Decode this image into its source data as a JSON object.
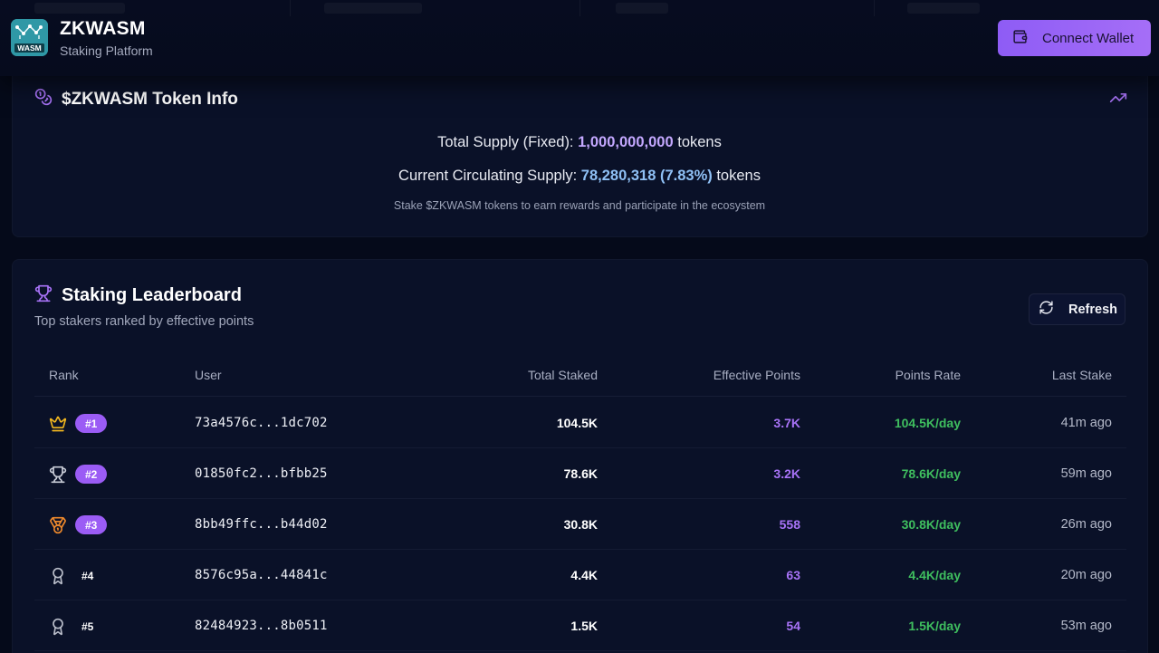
{
  "header": {
    "title": "ZKWASM",
    "subtitle": "Staking Platform",
    "logo_text": "WASM",
    "connect_label": "Connect Wallet"
  },
  "token_info": {
    "title": "$ZKWASM Token Info",
    "total_supply_label": "Total Supply (Fixed):",
    "total_supply_value": "1,000,000,000",
    "circulating_label": "Current Circulating Supply:",
    "circulating_value": "78,280,318 (7.83%)",
    "unit": "tokens",
    "note": "Stake $ZKWASM tokens to earn rewards and participate in the ecosystem"
  },
  "leaderboard": {
    "title": "Staking Leaderboard",
    "subtitle": "Top stakers ranked by effective points",
    "refresh_label": "Refresh",
    "columns": [
      "Rank",
      "User",
      "Total Staked",
      "Effective Points",
      "Points Rate",
      "Last Stake"
    ],
    "rows": [
      {
        "rank": "#1",
        "icon": "crown-icon",
        "user": "73a4576c...1dc702",
        "staked": "104.5K",
        "points": "3.7K",
        "rate": "104.5K/day",
        "last": "41m ago"
      },
      {
        "rank": "#2",
        "icon": "trophy-icon",
        "user": "01850fc2...bfbb25",
        "staked": "78.6K",
        "points": "3.2K",
        "rate": "78.6K/day",
        "last": "59m ago"
      },
      {
        "rank": "#3",
        "icon": "medal-icon",
        "user": "8bb49ffc...b44d02",
        "staked": "30.8K",
        "points": "558",
        "rate": "30.8K/day",
        "last": "26m ago"
      },
      {
        "rank": "#4",
        "icon": "award-icon",
        "user": "8576c95a...44841c",
        "staked": "4.4K",
        "points": "63",
        "rate": "4.4K/day",
        "last": "20m ago"
      },
      {
        "rank": "#5",
        "icon": "award-icon",
        "user": "82484923...8b0511",
        "staked": "1.5K",
        "points": "54",
        "rate": "1.5K/day",
        "last": "53m ago"
      }
    ]
  },
  "colors": {
    "accent": "#9b5cf5",
    "points": "#a873f7",
    "rate": "#3fbf5f",
    "gold": "#f2b71f",
    "bronze": "#f08a2c"
  }
}
